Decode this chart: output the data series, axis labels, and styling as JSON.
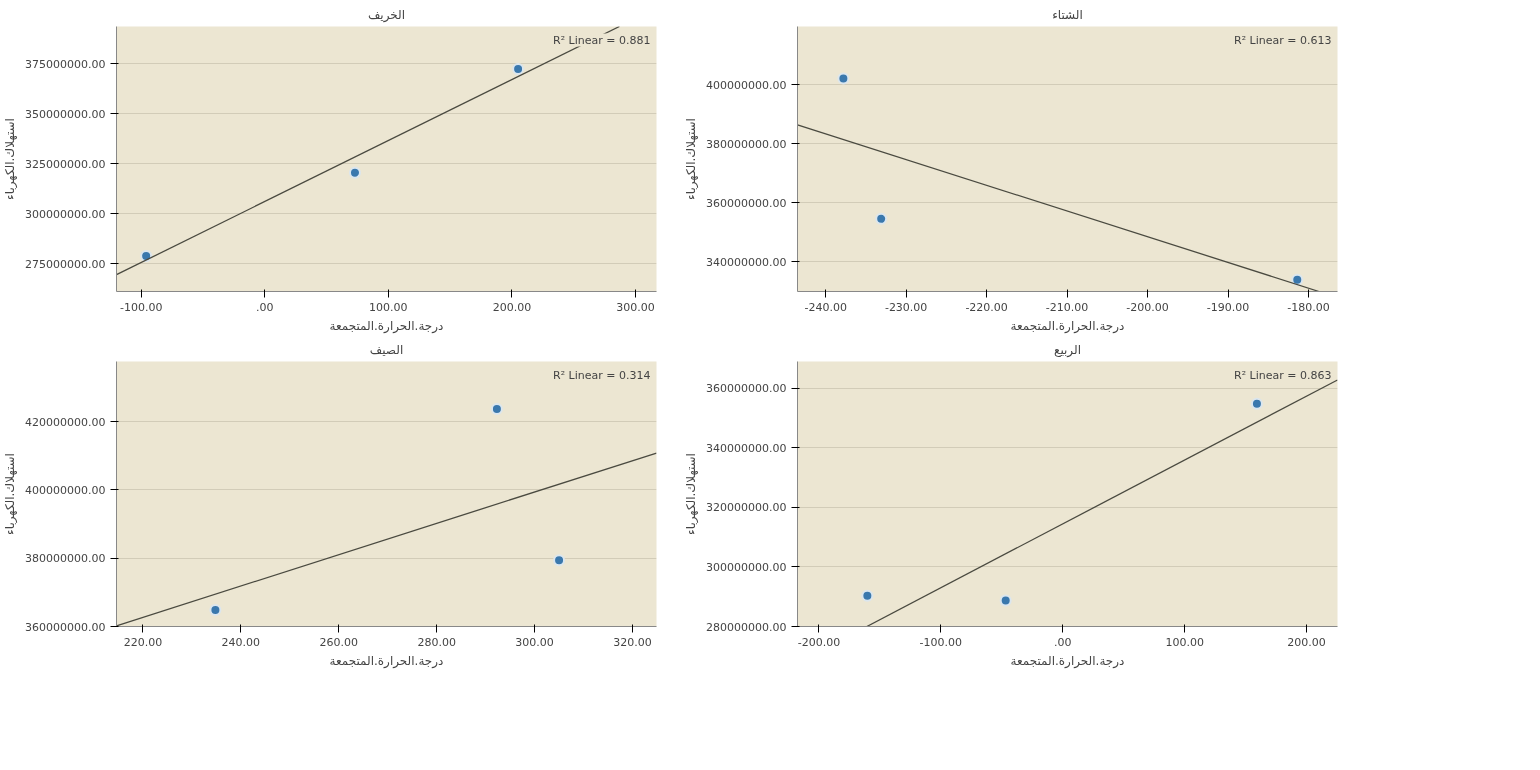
{
  "chart_data": [
    {
      "type": "scatter",
      "title": "الخريف",
      "xlabel": "درجة.الحرارة.المتجمعة",
      "ylabel": "استهلاك.الكهرباء",
      "annotations": [
        "R² Linear = 0.881"
      ],
      "grid": "y",
      "xlim": [
        -120,
        317
      ],
      "ylim": [
        261000000,
        393500000
      ],
      "xticks": [
        {
          "value": -100,
          "label": "-100.00"
        },
        {
          "value": 0,
          "label": ".00"
        },
        {
          "value": 100,
          "label": "100.00"
        },
        {
          "value": 200,
          "label": "200.00"
        },
        {
          "value": 300,
          "label": "300.00"
        }
      ],
      "yticks": [
        {
          "value": 275000000,
          "label": "275000000.00"
        },
        {
          "value": 300000000,
          "label": "300000000.00"
        },
        {
          "value": 325000000,
          "label": "325000000.00"
        },
        {
          "value": 350000000,
          "label": "350000000.00"
        },
        {
          "value": 375000000,
          "label": "375000000.00"
        }
      ],
      "series": [
        {
          "marker": "circle",
          "color": "#3a78ad",
          "x": [
            -96,
            73,
            205
          ],
          "values": [
            278800000,
            320400000,
            372300000
          ]
        },
        {
          "type": "line",
          "color": "#4a4a40",
          "x": [
            -120,
            287
          ],
          "values": [
            269400000,
            393500000
          ]
        }
      ]
    },
    {
      "type": "scatter",
      "title": "الشتاء",
      "xlabel": "درجة.الحرارة.المتجمعة",
      "ylabel": "استهلاك.الكهرباء",
      "annotations": [
        "R² Linear = 0.613"
      ],
      "grid": "y",
      "xlim": [
        -243.5,
        -176.4
      ],
      "ylim": [
        330000000,
        419700000
      ],
      "xticks": [
        {
          "value": -240,
          "label": "-240.00"
        },
        {
          "value": -230,
          "label": "-230.00"
        },
        {
          "value": -220,
          "label": "-220.00"
        },
        {
          "value": -210,
          "label": "-210.00"
        },
        {
          "value": -200,
          "label": "-200.00"
        },
        {
          "value": -190,
          "label": "-190.00"
        },
        {
          "value": -180,
          "label": "-180.00"
        }
      ],
      "yticks": [
        {
          "value": 340000000,
          "label": "340000000.00"
        },
        {
          "value": 360000000,
          "label": "360000000.00"
        },
        {
          "value": 380000000,
          "label": "380000000.00"
        },
        {
          "value": 400000000,
          "label": "400000000.00"
        }
      ],
      "series": [
        {
          "marker": "circle",
          "color": "#3a78ad",
          "x": [
            -237.8,
            -233.1,
            -181.4
          ],
          "values": [
            402100000,
            354600000,
            334000000
          ]
        },
        {
          "type": "line",
          "color": "#4a4a40",
          "x": [
            -243.5,
            -178.7
          ],
          "values": [
            386400000,
            330000000
          ]
        }
      ]
    },
    {
      "type": "scatter",
      "title": "الصيف",
      "xlabel": "درجة.الحرارة.المتجمعة",
      "ylabel": "استهلاك.الكهرباء",
      "annotations": [
        "R² Linear = 0.314"
      ],
      "grid": "y",
      "xlim": [
        214.6,
        324.9
      ],
      "ylim": [
        360000000,
        437600000
      ],
      "xticks": [
        {
          "value": 220,
          "label": "220.00"
        },
        {
          "value": 240,
          "label": "240.00"
        },
        {
          "value": 260,
          "label": "260.00"
        },
        {
          "value": 280,
          "label": "280.00"
        },
        {
          "value": 300,
          "label": "300.00"
        },
        {
          "value": 320,
          "label": "320.00"
        }
      ],
      "yticks": [
        {
          "value": 360000000,
          "label": "360000000.00"
        },
        {
          "value": 380000000,
          "label": "380000000.00"
        },
        {
          "value": 400000000,
          "label": "400000000.00"
        },
        {
          "value": 420000000,
          "label": "420000000.00"
        }
      ],
      "series": [
        {
          "marker": "circle",
          "color": "#3a78ad",
          "x": [
            234.8,
            292.3,
            305.0
          ],
          "values": [
            364800000,
            423700000,
            379400000
          ]
        },
        {
          "type": "line",
          "color": "#4a4a40",
          "x": [
            214.6,
            324.9
          ],
          "values": [
            360200000,
            410800000
          ]
        }
      ]
    },
    {
      "type": "scatter",
      "title": "الربيع",
      "xlabel": "درجة.الحرارة.المتجمعة",
      "ylabel": "استهلاك.الكهرباء",
      "annotations": [
        "R² Linear = 0.863"
      ],
      "grid": "y",
      "xlim": [
        -217.6,
        225.4
      ],
      "ylim": [
        280000000,
        369000000
      ],
      "xticks": [
        {
          "value": -200,
          "label": "-200.00"
        },
        {
          "value": -100,
          "label": "-100.00"
        },
        {
          "value": 0,
          "label": ".00"
        },
        {
          "value": 100,
          "label": "100.00"
        },
        {
          "value": 200,
          "label": "200.00"
        }
      ],
      "yticks": [
        {
          "value": 280000000,
          "label": "280000000.00"
        },
        {
          "value": 300000000,
          "label": "300000000.00"
        },
        {
          "value": 320000000,
          "label": "320000000.00"
        },
        {
          "value": 340000000,
          "label": "340000000.00"
        },
        {
          "value": 360000000,
          "label": "360000000.00"
        }
      ],
      "series": [
        {
          "marker": "circle",
          "color": "#3a78ad",
          "x": [
            -160.3,
            -46.8,
            159.3
          ],
          "values": [
            290300000,
            288700000,
            354800000
          ]
        },
        {
          "type": "line",
          "color": "#4a4a40",
          "x": [
            -160.7,
            225.4
          ],
          "values": [
            280000000,
            362800000
          ]
        }
      ]
    }
  ]
}
